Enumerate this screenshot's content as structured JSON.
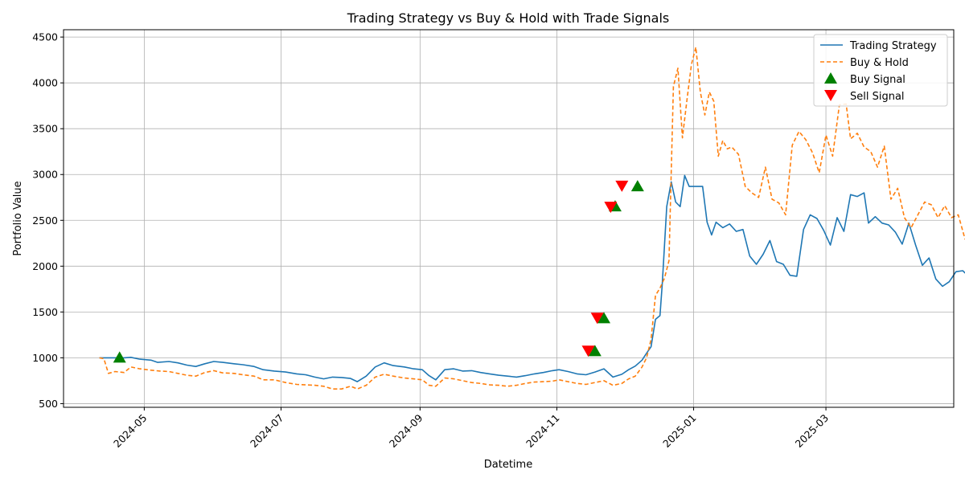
{
  "chart_data": {
    "type": "line",
    "title": "Trading Strategy vs Buy & Hold with Trade Signals",
    "xlabel": "Datetime",
    "ylabel": "Portfolio Value",
    "xlim": [
      "2024-03-26",
      "2025-04-27"
    ],
    "ylim": [
      460,
      4580
    ],
    "grid": true,
    "legend_position": "top-right",
    "x_ticks": [
      "2024-05-01",
      "2024-07-01",
      "2024-09-01",
      "2024-11-01",
      "2025-01-01",
      "2025-03-01"
    ],
    "x_tick_labels": [
      "2024-05",
      "2024-07",
      "2024-09",
      "2024-11",
      "2025-01",
      "2025-03"
    ],
    "y_ticks": [
      500,
      1000,
      1500,
      2000,
      2500,
      3000,
      3500,
      4000,
      4500
    ],
    "series": [
      {
        "name": "Trading Strategy",
        "style": "solid",
        "color": "#1f77b4",
        "points": [
          [
            "2024-04-11",
            1000
          ],
          [
            "2024-04-15",
            1000
          ],
          [
            "2024-04-20",
            1000
          ],
          [
            "2024-04-22",
            1000
          ],
          [
            "2024-04-25",
            1005
          ],
          [
            "2024-04-29",
            985
          ],
          [
            "2024-05-04",
            975
          ],
          [
            "2024-05-07",
            950
          ],
          [
            "2024-05-12",
            960
          ],
          [
            "2024-05-16",
            945
          ],
          [
            "2024-05-20",
            920
          ],
          [
            "2024-05-24",
            905
          ],
          [
            "2024-05-28",
            935
          ],
          [
            "2024-06-01",
            960
          ],
          [
            "2024-06-05",
            950
          ],
          [
            "2024-06-10",
            935
          ],
          [
            "2024-06-14",
            925
          ],
          [
            "2024-06-19",
            905
          ],
          [
            "2024-06-23",
            870
          ],
          [
            "2024-06-28",
            855
          ],
          [
            "2024-07-03",
            845
          ],
          [
            "2024-07-08",
            825
          ],
          [
            "2024-07-12",
            815
          ],
          [
            "2024-07-16",
            790
          ],
          [
            "2024-07-20",
            770
          ],
          [
            "2024-07-24",
            790
          ],
          [
            "2024-07-28",
            785
          ],
          [
            "2024-08-01",
            775
          ],
          [
            "2024-08-04",
            740
          ],
          [
            "2024-08-08",
            800
          ],
          [
            "2024-08-12",
            900
          ],
          [
            "2024-08-16",
            945
          ],
          [
            "2024-08-20",
            915
          ],
          [
            "2024-08-25",
            900
          ],
          [
            "2024-08-29",
            880
          ],
          [
            "2024-09-02",
            870
          ],
          [
            "2024-09-05",
            805
          ],
          [
            "2024-09-08",
            760
          ],
          [
            "2024-09-12",
            870
          ],
          [
            "2024-09-16",
            880
          ],
          [
            "2024-09-20",
            855
          ],
          [
            "2024-09-24",
            860
          ],
          [
            "2024-09-28",
            840
          ],
          [
            "2024-10-02",
            825
          ],
          [
            "2024-10-06",
            810
          ],
          [
            "2024-10-10",
            800
          ],
          [
            "2024-10-14",
            790
          ],
          [
            "2024-10-18",
            805
          ],
          [
            "2024-10-22",
            825
          ],
          [
            "2024-10-26",
            840
          ],
          [
            "2024-10-30",
            860
          ],
          [
            "2024-11-02",
            870
          ],
          [
            "2024-11-06",
            850
          ],
          [
            "2024-11-10",
            825
          ],
          [
            "2024-11-14",
            815
          ],
          [
            "2024-11-18",
            845
          ],
          [
            "2024-11-22",
            880
          ],
          [
            "2024-11-26",
            790
          ],
          [
            "2024-11-30",
            820
          ],
          [
            "2024-12-03",
            870
          ],
          [
            "2024-12-06",
            910
          ],
          [
            "2024-12-09",
            975
          ],
          [
            "2024-12-11",
            1050
          ],
          [
            "2024-12-13",
            1120
          ],
          [
            "2024-12-15",
            1420
          ],
          [
            "2024-12-17",
            1460
          ],
          [
            "2024-12-18",
            1800
          ],
          [
            "2024-12-20",
            2650
          ],
          [
            "2024-12-22",
            2920
          ],
          [
            "2024-12-24",
            2700
          ],
          [
            "2024-12-26",
            2650
          ],
          [
            "2024-12-28",
            2990
          ],
          [
            "2024-12-30",
            2870
          ],
          [
            "2025-01-02",
            2870
          ],
          [
            "2025-01-05",
            2870
          ],
          [
            "2025-01-07",
            2480
          ],
          [
            "2025-01-09",
            2340
          ],
          [
            "2025-01-11",
            2480
          ],
          [
            "2025-01-14",
            2420
          ],
          [
            "2025-01-17",
            2460
          ],
          [
            "2025-01-20",
            2380
          ],
          [
            "2025-01-23",
            2400
          ],
          [
            "2025-01-26",
            2110
          ],
          [
            "2025-01-29",
            2020
          ],
          [
            "2025-02-01",
            2130
          ],
          [
            "2025-02-04",
            2280
          ],
          [
            "2025-02-07",
            2050
          ],
          [
            "2025-02-10",
            2020
          ],
          [
            "2025-02-13",
            1900
          ],
          [
            "2025-02-16",
            1890
          ],
          [
            "2025-02-19",
            2400
          ],
          [
            "2025-02-22",
            2560
          ],
          [
            "2025-02-25",
            2520
          ],
          [
            "2025-02-28",
            2390
          ],
          [
            "2025-03-03",
            2230
          ],
          [
            "2025-03-06",
            2530
          ],
          [
            "2025-03-09",
            2380
          ],
          [
            "2025-03-12",
            2780
          ],
          [
            "2025-03-15",
            2760
          ],
          [
            "2025-03-18",
            2800
          ],
          [
            "2025-03-20",
            2470
          ],
          [
            "2025-03-23",
            2540
          ],
          [
            "2025-03-26",
            2470
          ],
          [
            "2025-03-29",
            2450
          ],
          [
            "2025-04-01",
            2370
          ],
          [
            "2025-04-04",
            2240
          ],
          [
            "2025-04-07",
            2470
          ],
          [
            "2025-04-10",
            2230
          ],
          [
            "2025-04-13",
            2010
          ],
          [
            "2025-04-16",
            2090
          ],
          [
            "2025-04-19",
            1860
          ],
          [
            "2025-04-22",
            1780
          ],
          [
            "2025-04-25",
            1830
          ],
          [
            "2025-04-28",
            1940
          ],
          [
            "2025-05-01",
            1950
          ],
          [
            "2025-05-04",
            1880
          ],
          [
            "2025-05-07",
            1950
          ],
          [
            "2025-05-10",
            1870
          ]
        ]
      },
      {
        "name": "Buy & Hold",
        "style": "dashed",
        "color": "#ff7f0e",
        "points": [
          [
            "2024-04-11",
            1000
          ],
          [
            "2024-04-13",
            990
          ],
          [
            "2024-04-15",
            830
          ],
          [
            "2024-04-18",
            850
          ],
          [
            "2024-04-22",
            840
          ],
          [
            "2024-04-25",
            900
          ],
          [
            "2024-04-29",
            880
          ],
          [
            "2024-05-04",
            865
          ],
          [
            "2024-05-08",
            855
          ],
          [
            "2024-05-12",
            850
          ],
          [
            "2024-05-16",
            830
          ],
          [
            "2024-05-20",
            810
          ],
          [
            "2024-05-24",
            800
          ],
          [
            "2024-05-28",
            840
          ],
          [
            "2024-06-01",
            860
          ],
          [
            "2024-06-05",
            835
          ],
          [
            "2024-06-10",
            830
          ],
          [
            "2024-06-14",
            815
          ],
          [
            "2024-06-19",
            800
          ],
          [
            "2024-06-23",
            760
          ],
          [
            "2024-06-28",
            760
          ],
          [
            "2024-07-03",
            730
          ],
          [
            "2024-07-08",
            710
          ],
          [
            "2024-07-12",
            705
          ],
          [
            "2024-07-16",
            700
          ],
          [
            "2024-07-20",
            690
          ],
          [
            "2024-07-24",
            660
          ],
          [
            "2024-07-28",
            660
          ],
          [
            "2024-08-01",
            690
          ],
          [
            "2024-08-04",
            660
          ],
          [
            "2024-08-08",
            700
          ],
          [
            "2024-08-12",
            790
          ],
          [
            "2024-08-16",
            820
          ],
          [
            "2024-08-20",
            800
          ],
          [
            "2024-08-25",
            780
          ],
          [
            "2024-08-29",
            770
          ],
          [
            "2024-09-02",
            760
          ],
          [
            "2024-09-05",
            700
          ],
          [
            "2024-09-08",
            690
          ],
          [
            "2024-09-12",
            780
          ],
          [
            "2024-09-16",
            770
          ],
          [
            "2024-09-20",
            750
          ],
          [
            "2024-09-24",
            730
          ],
          [
            "2024-09-28",
            720
          ],
          [
            "2024-10-02",
            705
          ],
          [
            "2024-10-06",
            700
          ],
          [
            "2024-10-10",
            690
          ],
          [
            "2024-10-14",
            700
          ],
          [
            "2024-10-18",
            720
          ],
          [
            "2024-10-22",
            735
          ],
          [
            "2024-10-26",
            740
          ],
          [
            "2024-10-30",
            745
          ],
          [
            "2024-11-02",
            760
          ],
          [
            "2024-11-06",
            740
          ],
          [
            "2024-11-10",
            720
          ],
          [
            "2024-11-14",
            710
          ],
          [
            "2024-11-18",
            730
          ],
          [
            "2024-11-22",
            750
          ],
          [
            "2024-11-26",
            700
          ],
          [
            "2024-11-30",
            720
          ],
          [
            "2024-12-03",
            770
          ],
          [
            "2024-12-06",
            800
          ],
          [
            "2024-12-09",
            900
          ],
          [
            "2024-12-11",
            1000
          ],
          [
            "2024-12-13",
            1200
          ],
          [
            "2024-12-15",
            1680
          ],
          [
            "2024-12-17",
            1760
          ],
          [
            "2024-12-19",
            1870
          ],
          [
            "2024-12-21",
            2060
          ],
          [
            "2024-12-23",
            3960
          ],
          [
            "2024-12-25",
            4160
          ],
          [
            "2024-12-27",
            3400
          ],
          [
            "2024-12-29",
            3810
          ],
          [
            "2024-12-31",
            4200
          ],
          [
            "2025-01-02",
            4390
          ],
          [
            "2025-01-04",
            3900
          ],
          [
            "2025-01-06",
            3650
          ],
          [
            "2025-01-08",
            3900
          ],
          [
            "2025-01-10",
            3800
          ],
          [
            "2025-01-12",
            3200
          ],
          [
            "2025-01-14",
            3370
          ],
          [
            "2025-01-16",
            3280
          ],
          [
            "2025-01-18",
            3300
          ],
          [
            "2025-01-21",
            3220
          ],
          [
            "2025-01-24",
            2870
          ],
          [
            "2025-01-27",
            2800
          ],
          [
            "2025-01-30",
            2750
          ],
          [
            "2025-02-02",
            3080
          ],
          [
            "2025-02-05",
            2730
          ],
          [
            "2025-02-08",
            2690
          ],
          [
            "2025-02-11",
            2560
          ],
          [
            "2025-02-14",
            3320
          ],
          [
            "2025-02-17",
            3470
          ],
          [
            "2025-02-20",
            3380
          ],
          [
            "2025-02-23",
            3240
          ],
          [
            "2025-02-26",
            3020
          ],
          [
            "2025-03-01",
            3430
          ],
          [
            "2025-03-04",
            3200
          ],
          [
            "2025-03-07",
            3760
          ],
          [
            "2025-03-10",
            3770
          ],
          [
            "2025-03-12",
            3390
          ],
          [
            "2025-03-15",
            3450
          ],
          [
            "2025-03-18",
            3300
          ],
          [
            "2025-03-21",
            3250
          ],
          [
            "2025-03-24",
            3080
          ],
          [
            "2025-03-27",
            3310
          ],
          [
            "2025-03-30",
            2730
          ],
          [
            "2025-04-02",
            2850
          ],
          [
            "2025-04-05",
            2530
          ],
          [
            "2025-04-08",
            2420
          ],
          [
            "2025-04-11",
            2560
          ],
          [
            "2025-04-14",
            2700
          ],
          [
            "2025-04-17",
            2670
          ],
          [
            "2025-04-20",
            2530
          ],
          [
            "2025-04-23",
            2660
          ],
          [
            "2025-04-26",
            2530
          ],
          [
            "2025-04-29",
            2560
          ],
          [
            "2025-05-02",
            2300
          ],
          [
            "2025-05-05",
            2200
          ]
        ]
      }
    ],
    "buy_signals": {
      "name": "Buy Signal",
      "color": "#008000",
      "marker": "triangle-up",
      "points": [
        [
          "2024-04-20",
          1000
        ],
        [
          "2024-11-18",
          1070
        ],
        [
          "2024-11-22",
          1430
        ],
        [
          "2024-11-27",
          2650
        ],
        [
          "2024-12-07",
          2870
        ]
      ]
    },
    "sell_signals": {
      "name": "Sell Signal",
      "color": "#ff0000",
      "marker": "triangle-down",
      "points": [
        [
          "2024-11-15",
          1080
        ],
        [
          "2024-11-19",
          1440
        ],
        [
          "2024-11-25",
          2650
        ],
        [
          "2024-11-30",
          2880
        ]
      ]
    }
  }
}
